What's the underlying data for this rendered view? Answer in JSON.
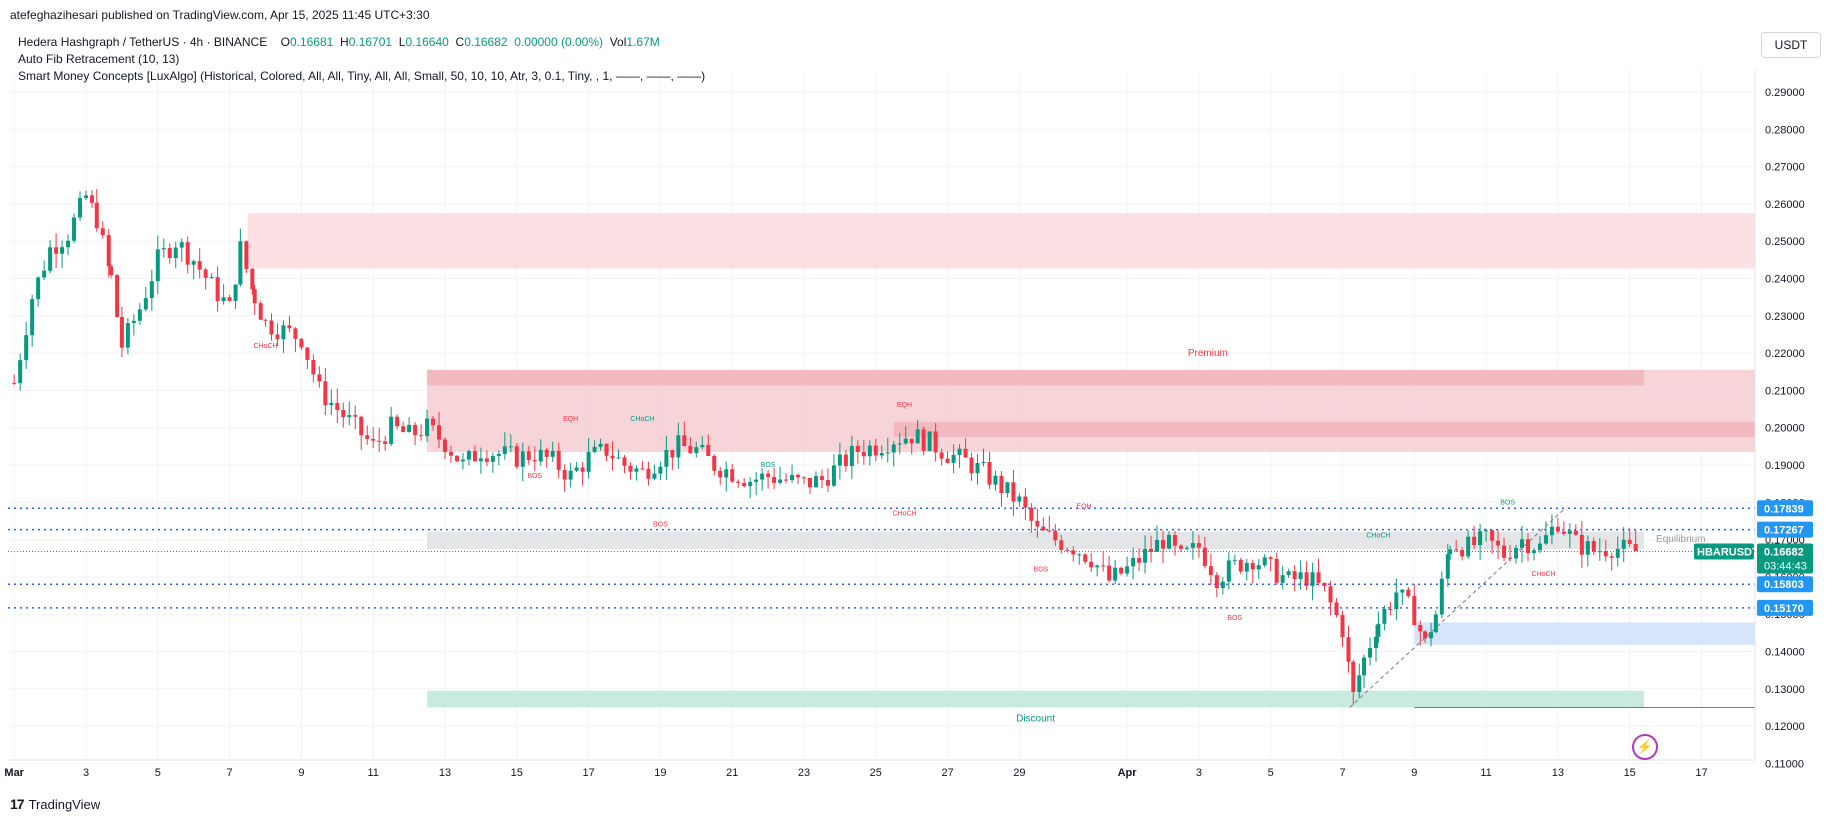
{
  "header": {
    "published_line": "atefeghazihesari published on TradingView.com, Apr 15, 2025 11:45 UTC+3:30"
  },
  "legend": {
    "symbol": "Hedera Hashgraph / TetherUS · 4h · BINANCE",
    "o_label": "O",
    "o_value": "0.16681",
    "h_label": "H",
    "h_value": "0.16701",
    "l_label": "L",
    "l_value": "0.16640",
    "c_label": "C",
    "c_value": "0.16682",
    "change": "0.00000 (0.00%)",
    "vol_label": "Vol",
    "vol_value": "1.67M",
    "indicator1": "Auto Fib Retracement (10, 13)",
    "indicator2": "Smart Money Concepts [LuxAlgo] (Historical, Colored, All, All, Tiny, All, All, Small, 50, 10, 10, Atr, 3, 0.1, Tiny, , 1, ——, ——, ——)"
  },
  "currency_button": "USDT",
  "footer": {
    "brand": "TradingView",
    "logo": "17"
  },
  "bolt_icon": "lightning-icon",
  "colors": {
    "up": "#089981",
    "down": "#f23645",
    "premium_zone": "#f7c9cd",
    "discount_zone": "#c5e8e0",
    "equilibrium": "#dfe0e3",
    "level_line": "#2962ff",
    "price_tag": "#089981",
    "level_tag": "#2196f3"
  },
  "chart_data": {
    "type": "candlestick",
    "symbol": "HBARUSDT",
    "timeframe": "4h",
    "ylim": [
      0.105,
      0.298
    ],
    "y_ticks": [
      "0.29000",
      "0.28000",
      "0.27000",
      "0.26000",
      "0.25000",
      "0.24000",
      "0.23000",
      "0.22000",
      "0.21000",
      "0.20000",
      "0.19000",
      "0.18000",
      "0.17000",
      "0.16000",
      "0.15000",
      "0.14000",
      "0.13000",
      "0.12000",
      "0.11000"
    ],
    "x_ticks": [
      {
        "label": "Mar",
        "day": 1
      },
      {
        "label": "3",
        "day": 3
      },
      {
        "label": "5",
        "day": 5
      },
      {
        "label": "7",
        "day": 7
      },
      {
        "label": "9",
        "day": 9
      },
      {
        "label": "11",
        "day": 11
      },
      {
        "label": "13",
        "day": 13
      },
      {
        "label": "15",
        "day": 15
      },
      {
        "label": "17",
        "day": 17
      },
      {
        "label": "19",
        "day": 19
      },
      {
        "label": "21",
        "day": 21
      },
      {
        "label": "23",
        "day": 23
      },
      {
        "label": "25",
        "day": 25
      },
      {
        "label": "27",
        "day": 27
      },
      {
        "label": "29",
        "day": 29
      },
      {
        "label": "Apr",
        "day": 32
      },
      {
        "label": "3",
        "day": 34
      },
      {
        "label": "5",
        "day": 36
      },
      {
        "label": "7",
        "day": 38
      },
      {
        "label": "9",
        "day": 40
      },
      {
        "label": "11",
        "day": 42
      },
      {
        "label": "13",
        "day": 44
      },
      {
        "label": "15",
        "day": 46
      },
      {
        "label": "17",
        "day": 48
      }
    ],
    "close_path": [
      [
        1.0,
        0.212
      ],
      [
        1.5,
        0.235
      ],
      [
        2.0,
        0.248
      ],
      [
        2.5,
        0.252
      ],
      [
        3.0,
        0.262
      ],
      [
        3.3,
        0.256
      ],
      [
        3.7,
        0.24
      ],
      [
        4.0,
        0.222
      ],
      [
        4.5,
        0.232
      ],
      [
        5.0,
        0.245
      ],
      [
        5.5,
        0.25
      ],
      [
        6.0,
        0.245
      ],
      [
        6.5,
        0.238
      ],
      [
        7.0,
        0.232
      ],
      [
        7.3,
        0.248
      ],
      [
        7.7,
        0.235
      ],
      [
        8.0,
        0.228
      ],
      [
        8.5,
        0.226
      ],
      [
        9.0,
        0.224
      ],
      [
        9.5,
        0.21
      ],
      [
        10.0,
        0.205
      ],
      [
        10.5,
        0.2
      ],
      [
        11.0,
        0.195
      ],
      [
        11.5,
        0.2
      ],
      [
        12.0,
        0.198
      ],
      [
        12.5,
        0.2
      ],
      [
        13.0,
        0.196
      ],
      [
        13.5,
        0.19
      ],
      [
        14.0,
        0.194
      ],
      [
        14.5,
        0.193
      ],
      [
        15.0,
        0.192
      ],
      [
        15.5,
        0.193
      ],
      [
        16.0,
        0.191
      ],
      [
        16.5,
        0.187
      ],
      [
        17.0,
        0.192
      ],
      [
        17.5,
        0.194
      ],
      [
        18.0,
        0.19
      ],
      [
        18.5,
        0.188
      ],
      [
        19.0,
        0.192
      ],
      [
        19.5,
        0.195
      ],
      [
        20.0,
        0.194
      ],
      [
        20.5,
        0.19
      ],
      [
        21.0,
        0.188
      ],
      [
        21.5,
        0.186
      ],
      [
        22.0,
        0.187
      ],
      [
        22.5,
        0.186
      ],
      [
        23.0,
        0.185
      ],
      [
        23.5,
        0.186
      ],
      [
        24.0,
        0.19
      ],
      [
        24.5,
        0.194
      ],
      [
        25.0,
        0.195
      ],
      [
        25.5,
        0.197
      ],
      [
        26.0,
        0.198
      ],
      [
        26.5,
        0.196
      ],
      [
        27.0,
        0.193
      ],
      [
        27.5,
        0.191
      ],
      [
        28.0,
        0.188
      ],
      [
        28.5,
        0.184
      ],
      [
        29.0,
        0.18
      ],
      [
        29.5,
        0.172
      ],
      [
        30.0,
        0.17
      ],
      [
        30.5,
        0.168
      ],
      [
        31.0,
        0.165
      ],
      [
        31.5,
        0.159
      ],
      [
        32.0,
        0.162
      ],
      [
        32.5,
        0.166
      ],
      [
        33.0,
        0.17
      ],
      [
        33.5,
        0.165
      ],
      [
        34.0,
        0.168
      ],
      [
        34.5,
        0.16
      ],
      [
        35.0,
        0.163
      ],
      [
        35.5,
        0.165
      ],
      [
        36.0,
        0.162
      ],
      [
        36.5,
        0.159
      ],
      [
        37.0,
        0.16
      ],
      [
        37.5,
        0.156
      ],
      [
        38.0,
        0.146
      ],
      [
        38.3,
        0.128
      ],
      [
        38.6,
        0.138
      ],
      [
        39.0,
        0.148
      ],
      [
        39.5,
        0.156
      ],
      [
        40.0,
        0.15
      ],
      [
        40.3,
        0.142
      ],
      [
        40.6,
        0.15
      ],
      [
        41.0,
        0.169
      ],
      [
        41.5,
        0.168
      ],
      [
        42.0,
        0.17
      ],
      [
        42.5,
        0.166
      ],
      [
        43.0,
        0.17
      ],
      [
        43.5,
        0.168
      ],
      [
        44.0,
        0.175
      ],
      [
        44.5,
        0.169
      ],
      [
        45.0,
        0.167
      ],
      [
        45.5,
        0.168
      ],
      [
        46.0,
        0.167
      ],
      [
        46.3,
        0.1668
      ]
    ],
    "zones": [
      {
        "kind": "supply",
        "from_day": 7.5,
        "to_day": 56,
        "top": 0.2575,
        "bottom": 0.2427
      },
      {
        "kind": "premium",
        "label": "Premium",
        "from_day": 12.5,
        "to_day": 56,
        "top": 0.2155,
        "bottom": 0.1935
      },
      {
        "kind": "ob",
        "from_day": 12.5,
        "to_day": 46.4,
        "top": 0.2155,
        "bottom": 0.2113
      },
      {
        "kind": "ob",
        "from_day": 25.5,
        "to_day": 56,
        "top": 0.2015,
        "bottom": 0.1975
      },
      {
        "kind": "equilibrium",
        "label": "Equilibrium",
        "from_day": 12.5,
        "to_day": 46.4,
        "top": 0.1721,
        "bottom": 0.1675
      },
      {
        "kind": "discount",
        "label": "Discount",
        "from_day": 12.5,
        "to_day": 46.4,
        "top": 0.1295,
        "bottom": 0.125
      },
      {
        "kind": "demand",
        "from_day": 40,
        "to_day": 56,
        "top": 0.1478,
        "bottom": 0.1418
      }
    ],
    "horizontal_levels": [
      {
        "value": "0.17839",
        "price": 0.17839
      },
      {
        "value": "0.17267",
        "price": 0.17267
      },
      {
        "value": "0.15803",
        "price": 0.15803
      },
      {
        "value": "0.15170",
        "price": 0.1517
      }
    ],
    "structure_labels": [
      {
        "text": "CHoCH",
        "day": 8.0,
        "price": 0.2214,
        "color": "down"
      },
      {
        "text": "EQH",
        "day": 16.5,
        "price": 0.2018,
        "color": "down"
      },
      {
        "text": "CHoCH",
        "day": 18.5,
        "price": 0.2018,
        "color": "up"
      },
      {
        "text": "BOS",
        "day": 15.5,
        "price": 0.1865,
        "color": "down"
      },
      {
        "text": "BOS",
        "day": 22.0,
        "price": 0.1895,
        "color": "up"
      },
      {
        "text": "BOS",
        "day": 19.0,
        "price": 0.1735,
        "color": "down"
      },
      {
        "text": "EQH",
        "day": 25.8,
        "price": 0.2056,
        "color": "down"
      },
      {
        "text": "CHoCH",
        "day": 25.8,
        "price": 0.1764,
        "color": "down"
      },
      {
        "text": "EQH",
        "day": 30.8,
        "price": 0.1784,
        "color": "down"
      },
      {
        "text": "BOS",
        "day": 29.6,
        "price": 0.1614,
        "color": "down"
      },
      {
        "text": "BOS",
        "day": 35.0,
        "price": 0.1484,
        "color": "down"
      },
      {
        "text": "CHoCH",
        "day": 39.0,
        "price": 0.1706,
        "color": "up"
      },
      {
        "text": "BOS",
        "day": 42.6,
        "price": 0.1794,
        "color": "up"
      },
      {
        "text": "CHoCH",
        "day": 43.6,
        "price": 0.1602,
        "color": "down"
      }
    ],
    "last_price": {
      "label": "HBARUSDT",
      "value": "0.16682",
      "countdown": "03:44:43",
      "price": 0.16682
    }
  }
}
